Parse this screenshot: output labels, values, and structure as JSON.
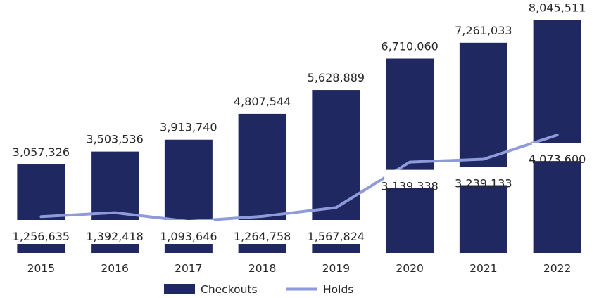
{
  "chart_data": {
    "type": "bar",
    "categories": [
      "2015",
      "2016",
      "2017",
      "2018",
      "2019",
      "2020",
      "2021",
      "2022"
    ],
    "series": [
      {
        "name": "Checkouts",
        "kind": "bar",
        "color": "#1F2861",
        "values": [
          3057326,
          3503536,
          3913740,
          4807544,
          5628889,
          6710060,
          7261033,
          8045511
        ],
        "labels": [
          "3,057,326",
          "3,503,536",
          "3,913,740",
          "4,807,544",
          "5,628,889",
          "6,710,060",
          "7,261,033",
          "8,045,511"
        ]
      },
      {
        "name": "Holds",
        "kind": "line",
        "color": "#8E9AD9",
        "values": [
          1256635,
          1392418,
          1093646,
          1264758,
          1567824,
          3139338,
          3239133,
          4073600
        ],
        "labels": [
          "1,256,635",
          "1,392,418",
          "1,093,646",
          "1,264,758",
          "1,567,824",
          "3,139,338",
          "3,239,133",
          "4,073,600"
        ]
      }
    ],
    "ylim": [
      0,
      8300000
    ],
    "grid": false,
    "legend_position": "bottom"
  }
}
